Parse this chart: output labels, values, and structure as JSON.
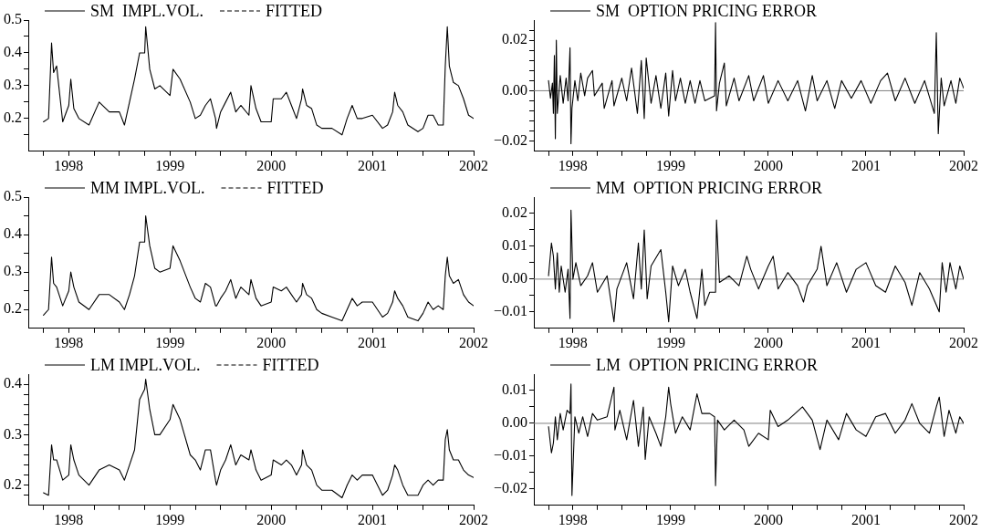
{
  "chart_data": [
    {
      "type": "line",
      "legend": "top left",
      "xlim": [
        1997.6,
        2002
      ],
      "ylim": [
        0.1,
        0.5
      ],
      "xticks": [
        {
          "value": 1997.75,
          "label": null
        },
        1998,
        {
          "value": 1998.25,
          "label": null
        },
        {
          "value": 1998.5,
          "label": null
        },
        {
          "value": 1998.75,
          "label": null
        },
        1999,
        {
          "value": 1999.25,
          "label": null
        },
        {
          "value": 1999.5,
          "label": null
        },
        {
          "value": 1999.75,
          "label": null
        },
        2000,
        {
          "value": 2000.25,
          "label": null
        },
        {
          "value": 2000.5,
          "label": null
        },
        {
          "value": 2000.75,
          "label": null
        },
        2001,
        {
          "value": 2001.25,
          "label": null
        },
        {
          "value": 2001.5,
          "label": null
        },
        {
          "value": 2001.75,
          "label": null
        },
        2002
      ],
      "yticks": [
        {
          "value": 0.15,
          "label": null
        },
        0.2,
        {
          "value": 0.25,
          "label": null
        },
        0.3,
        {
          "value": 0.35,
          "label": null
        },
        0.4,
        {
          "value": 0.45,
          "label": null
        },
        0.5
      ],
      "x": [
        1997.75,
        1997.8,
        1997.83,
        1997.85,
        1997.88,
        1997.94,
        1998,
        1998.02,
        1998.05,
        1998.1,
        1998.2,
        1998.3,
        1998.4,
        1998.5,
        1998.55,
        1998.6,
        1998.65,
        1998.7,
        1998.75,
        1998.76,
        1998.8,
        1998.85,
        1998.9,
        1999,
        1999.03,
        1999.1,
        1999.2,
        1999.25,
        1999.3,
        1999.35,
        1999.4,
        1999.45,
        1999.46,
        1999.5,
        1999.55,
        1999.6,
        1999.65,
        1999.7,
        1999.78,
        1999.8,
        1999.85,
        1999.9,
        2000,
        2000.02,
        2000.1,
        2000.15,
        2000.2,
        2000.25,
        2000.3,
        2000.31,
        2000.35,
        2000.4,
        2000.45,
        2000.5,
        2000.6,
        2000.7,
        2000.75,
        2000.8,
        2000.85,
        2000.9,
        2001,
        2001.1,
        2001.15,
        2001.2,
        2001.22,
        2001.25,
        2001.3,
        2001.35,
        2001.45,
        2001.5,
        2001.55,
        2001.6,
        2001.65,
        2001.7,
        2001.72,
        2001.74,
        2001.76,
        2001.8,
        2001.85,
        2001.9,
        2001.95,
        2002
      ],
      "series": [
        {
          "name": "SM  IMPL.VOL.",
          "color": "#000000",
          "line_style": "solid",
          "values": [
            0.19,
            0.2,
            0.43,
            0.34,
            0.36,
            0.19,
            0.24,
            0.32,
            0.23,
            0.2,
            0.18,
            0.25,
            0.22,
            0.22,
            0.18,
            0.25,
            0.32,
            0.4,
            0.4,
            0.48,
            0.35,
            0.29,
            0.3,
            0.27,
            0.35,
            0.32,
            0.25,
            0.2,
            0.21,
            0.24,
            0.26,
            0.2,
            0.17,
            0.22,
            0.25,
            0.28,
            0.22,
            0.24,
            0.21,
            0.3,
            0.23,
            0.19,
            0.19,
            0.26,
            0.26,
            0.28,
            0.24,
            0.2,
            0.26,
            0.29,
            0.24,
            0.23,
            0.18,
            0.17,
            0.17,
            0.15,
            0.2,
            0.24,
            0.2,
            0.2,
            0.21,
            0.17,
            0.18,
            0.22,
            0.28,
            0.24,
            0.22,
            0.18,
            0.16,
            0.17,
            0.21,
            0.21,
            0.18,
            0.18,
            0.36,
            0.48,
            0.36,
            0.31,
            0.3,
            0.26,
            0.21,
            0.2
          ]
        },
        {
          "name": "FITTED",
          "color": "#000000",
          "line_style": "dashed",
          "values": [
            null,
            null,
            null,
            null,
            null,
            null,
            null,
            null,
            null,
            null,
            null,
            null,
            null,
            null,
            null,
            null,
            null,
            null,
            null,
            null,
            null,
            null,
            null,
            null,
            null,
            null,
            null,
            null,
            null,
            null,
            null,
            null,
            null,
            null,
            null,
            null,
            null,
            null,
            null,
            null,
            null,
            null,
            null,
            null,
            null,
            null,
            null,
            null,
            null,
            null,
            null,
            null,
            null,
            null,
            null,
            null,
            null,
            null,
            null,
            null,
            null,
            null,
            null,
            null,
            null,
            null,
            null,
            null,
            null,
            null,
            null,
            null,
            null,
            null,
            null,
            null,
            null,
            null,
            null,
            null,
            null,
            null
          ]
        }
      ]
    },
    {
      "type": "line",
      "legend": "top left",
      "xlim": [
        1997.6,
        2002
      ],
      "ylim": [
        -0.024,
        0.028
      ],
      "xticks": [
        {
          "value": 1997.75,
          "label": null
        },
        1998,
        {
          "value": 1998.25,
          "label": null
        },
        {
          "value": 1998.5,
          "label": null
        },
        {
          "value": 1998.75,
          "label": null
        },
        1999,
        {
          "value": 1999.25,
          "label": null
        },
        {
          "value": 1999.5,
          "label": null
        },
        {
          "value": 1999.75,
          "label": null
        },
        2000,
        {
          "value": 2000.25,
          "label": null
        },
        {
          "value": 2000.5,
          "label": null
        },
        {
          "value": 2000.75,
          "label": null
        },
        2001,
        {
          "value": 2001.25,
          "label": null
        },
        {
          "value": 2001.5,
          "label": null
        },
        {
          "value": 2001.75,
          "label": null
        },
        2002
      ],
      "yticks": [
        {
          "value": -0.02,
          "label": "−0.02"
        },
        {
          "value": -0.016,
          "label": null
        },
        {
          "value": -0.012,
          "label": null
        },
        {
          "value": -0.008,
          "label": null
        },
        {
          "value": -0.004,
          "label": null
        },
        {
          "value": 0,
          "label": "0.00"
        },
        {
          "value": 0.004,
          "label": null
        },
        {
          "value": 0.008,
          "label": null
        },
        {
          "value": 0.012,
          "label": null
        },
        {
          "value": 0.016,
          "label": null
        },
        {
          "value": 0.02,
          "label": "0.02"
        },
        {
          "value": 0.024,
          "label": null
        }
      ],
      "ref_lines": [
        {
          "axis": "y",
          "value": 0,
          "color": "#808080"
        }
      ],
      "x": [
        1997.75,
        1997.77,
        1997.79,
        1997.8,
        1997.81,
        1997.82,
        1997.83,
        1997.84,
        1997.87,
        1997.9,
        1997.93,
        1997.95,
        1997.97,
        1997.98,
        1997.99,
        1998.02,
        1998.05,
        1998.08,
        1998.12,
        1998.15,
        1998.2,
        1998.22,
        1998.3,
        1998.32,
        1998.4,
        1998.42,
        1998.5,
        1998.55,
        1998.6,
        1998.66,
        1998.7,
        1998.73,
        1998.75,
        1998.8,
        1998.85,
        1998.9,
        1998.95,
        1998.98,
        1999.02,
        1999.05,
        1999.1,
        1999.15,
        1999.2,
        1999.25,
        1999.3,
        1999.35,
        1999.45,
        1999.46,
        1999.47,
        1999.5,
        1999.55,
        1999.57,
        1999.65,
        1999.7,
        1999.8,
        1999.85,
        1999.95,
        2000,
        2000.1,
        2000.2,
        2000.3,
        2000.38,
        2000.45,
        2000.5,
        2000.6,
        2000.68,
        2000.75,
        2000.85,
        2000.95,
        2001.05,
        2001.15,
        2001.22,
        2001.3,
        2001.4,
        2001.5,
        2001.6,
        2001.7,
        2001.72,
        2001.74,
        2001.77,
        2001.8,
        2001.87,
        2001.92,
        2001.96,
        2002
      ],
      "series": [
        {
          "name": "SM  OPTION PRICING ERROR",
          "color": "#000000",
          "line_style": "solid",
          "values": [
            0.004,
            -0.003,
            0.003,
            -0.009,
            0.014,
            -0.019,
            0.02,
            -0.009,
            0.006,
            -0.005,
            0.005,
            -0.004,
            0.017,
            -0.021,
            -0.007,
            0.004,
            -0.004,
            0.007,
            -0.002,
            0.005,
            0.008,
            -0.002,
            0.003,
            -0.007,
            0.004,
            -0.006,
            0.005,
            -0.004,
            0.009,
            -0.009,
            0.012,
            -0.011,
            0.013,
            -0.005,
            0.006,
            -0.007,
            0.007,
            -0.01,
            0.008,
            -0.004,
            0.005,
            -0.005,
            0.004,
            -0.005,
            0.004,
            -0.004,
            -0.002,
            0.027,
            -0.008,
            0.003,
            0.011,
            -0.006,
            0.005,
            -0.004,
            0.006,
            -0.004,
            0.006,
            -0.005,
            0.004,
            -0.004,
            0.004,
            -0.008,
            0.006,
            -0.004,
            0.004,
            -0.007,
            0.004,
            -0.003,
            0.004,
            -0.005,
            0.004,
            0.007,
            -0.004,
            0.005,
            -0.005,
            0.004,
            -0.009,
            0.023,
            -0.017,
            0.005,
            -0.006,
            0.004,
            -0.005,
            0.005,
            0.001
          ]
        }
      ]
    },
    {
      "type": "line",
      "legend": "top left",
      "xlim": [
        1997.6,
        2002
      ],
      "ylim": [
        0.15,
        0.5
      ],
      "xticks": [
        {
          "value": 1997.75,
          "label": null
        },
        1998,
        {
          "value": 1998.25,
          "label": null
        },
        {
          "value": 1998.5,
          "label": null
        },
        {
          "value": 1998.75,
          "label": null
        },
        1999,
        {
          "value": 1999.25,
          "label": null
        },
        {
          "value": 1999.5,
          "label": null
        },
        {
          "value": 1999.75,
          "label": null
        },
        2000,
        {
          "value": 2000.25,
          "label": null
        },
        {
          "value": 2000.5,
          "label": null
        },
        {
          "value": 2000.75,
          "label": null
        },
        2001,
        {
          "value": 2001.25,
          "label": null
        },
        {
          "value": 2001.5,
          "label": null
        },
        {
          "value": 2001.75,
          "label": null
        },
        2002
      ],
      "yticks": [
        0.2,
        {
          "value": 0.25,
          "label": null
        },
        0.3,
        {
          "value": 0.35,
          "label": null
        },
        0.4,
        {
          "value": 0.45,
          "label": null
        },
        0.5
      ],
      "x": [
        1997.75,
        1997.8,
        1997.83,
        1997.85,
        1997.88,
        1997.94,
        1998,
        1998.02,
        1998.05,
        1998.1,
        1998.2,
        1998.3,
        1998.4,
        1998.5,
        1998.55,
        1998.6,
        1998.65,
        1998.7,
        1998.75,
        1998.76,
        1998.8,
        1998.85,
        1998.9,
        1999,
        1999.03,
        1999.1,
        1999.2,
        1999.25,
        1999.3,
        1999.35,
        1999.4,
        1999.45,
        1999.46,
        1999.5,
        1999.55,
        1999.6,
        1999.65,
        1999.7,
        1999.78,
        1999.8,
        1999.85,
        1999.9,
        2000,
        2000.02,
        2000.1,
        2000.15,
        2000.2,
        2000.25,
        2000.3,
        2000.31,
        2000.35,
        2000.4,
        2000.45,
        2000.5,
        2000.6,
        2000.7,
        2000.75,
        2000.8,
        2000.85,
        2000.9,
        2001,
        2001.1,
        2001.15,
        2001.2,
        2001.22,
        2001.25,
        2001.3,
        2001.35,
        2001.45,
        2001.5,
        2001.55,
        2001.6,
        2001.65,
        2001.7,
        2001.72,
        2001.74,
        2001.76,
        2001.8,
        2001.85,
        2001.9,
        2001.95,
        2002
      ],
      "series": [
        {
          "name": "MM IMPL.VOL.",
          "color": "#000000",
          "line_style": "solid",
          "values": [
            0.185,
            0.2,
            0.34,
            0.27,
            0.26,
            0.21,
            0.25,
            0.3,
            0.26,
            0.22,
            0.2,
            0.24,
            0.24,
            0.22,
            0.2,
            0.24,
            0.29,
            0.38,
            0.38,
            0.45,
            0.37,
            0.31,
            0.3,
            0.31,
            0.37,
            0.33,
            0.26,
            0.23,
            0.22,
            0.27,
            0.26,
            0.21,
            0.21,
            0.23,
            0.25,
            0.28,
            0.23,
            0.26,
            0.24,
            0.28,
            0.23,
            0.21,
            0.22,
            0.26,
            0.25,
            0.26,
            0.24,
            0.22,
            0.24,
            0.27,
            0.24,
            0.23,
            0.2,
            0.19,
            0.18,
            0.17,
            0.2,
            0.23,
            0.21,
            0.22,
            0.22,
            0.18,
            0.19,
            0.22,
            0.25,
            0.23,
            0.21,
            0.18,
            0.17,
            0.19,
            0.22,
            0.2,
            0.21,
            0.2,
            0.29,
            0.34,
            0.29,
            0.27,
            0.28,
            0.24,
            0.22,
            0.21
          ]
        },
        {
          "name": "FITTED",
          "color": "#000000",
          "line_style": "dashed",
          "values": [
            null,
            null,
            null,
            null,
            null,
            null,
            null,
            null,
            null,
            null,
            null,
            null,
            null,
            null,
            null,
            null,
            null,
            null,
            null,
            null,
            null,
            null,
            null,
            null,
            null,
            null,
            null,
            null,
            null,
            null,
            null,
            null,
            null,
            null,
            null,
            null,
            null,
            null,
            null,
            null,
            null,
            null,
            null,
            null,
            null,
            null,
            null,
            null,
            null,
            null,
            null,
            null,
            null,
            null,
            null,
            null,
            null,
            null,
            null,
            null,
            null,
            null,
            null,
            null,
            null,
            null,
            null,
            null,
            null,
            null,
            null,
            null,
            null,
            null,
            null,
            null,
            null,
            null,
            null,
            null,
            null,
            null
          ]
        }
      ]
    },
    {
      "type": "line",
      "legend": "top left",
      "xlim": [
        1997.6,
        2002
      ],
      "ylim": [
        -0.015,
        0.025
      ],
      "xticks": [
        {
          "value": 1997.75,
          "label": null
        },
        1998,
        {
          "value": 1998.25,
          "label": null
        },
        {
          "value": 1998.5,
          "label": null
        },
        {
          "value": 1998.75,
          "label": null
        },
        1999,
        {
          "value": 1999.25,
          "label": null
        },
        {
          "value": 1999.5,
          "label": null
        },
        {
          "value": 1999.75,
          "label": null
        },
        2000,
        {
          "value": 2000.25,
          "label": null
        },
        {
          "value": 2000.5,
          "label": null
        },
        {
          "value": 2000.75,
          "label": null
        },
        2001,
        {
          "value": 2001.25,
          "label": null
        },
        {
          "value": 2001.5,
          "label": null
        },
        {
          "value": 2001.75,
          "label": null
        },
        2002
      ],
      "yticks": [
        {
          "value": -0.01,
          "label": "−0.01"
        },
        {
          "value": -0.005,
          "label": null
        },
        {
          "value": 0,
          "label": "0.00"
        },
        {
          "value": 0.005,
          "label": null
        },
        {
          "value": 0.01,
          "label": "0.01"
        },
        {
          "value": 0.015,
          "label": null
        },
        {
          "value": 0.02,
          "label": "0.02"
        }
      ],
      "ref_lines": [
        {
          "axis": "y",
          "value": 0,
          "color": "#808080"
        }
      ],
      "x": [
        1997.75,
        1997.78,
        1997.8,
        1997.82,
        1997.84,
        1997.86,
        1997.88,
        1997.92,
        1997.95,
        1997.97,
        1997.98,
        1998,
        1998.03,
        1998.08,
        1998.15,
        1998.2,
        1998.25,
        1998.35,
        1998.42,
        1998.45,
        1998.55,
        1998.62,
        1998.67,
        1998.7,
        1998.73,
        1998.76,
        1998.8,
        1998.9,
        1998.95,
        1998.98,
        1999.02,
        1999.08,
        1999.15,
        1999.2,
        1999.27,
        1999.32,
        1999.35,
        1999.4,
        1999.46,
        1999.47,
        1999.5,
        1999.6,
        1999.7,
        1999.78,
        1999.82,
        1999.9,
        2000,
        2000.05,
        2000.1,
        2000.2,
        2000.3,
        2000.36,
        2000.4,
        2000.5,
        2000.54,
        2000.6,
        2000.7,
        2000.8,
        2000.9,
        2001,
        2001.1,
        2001.2,
        2001.3,
        2001.4,
        2001.47,
        2001.55,
        2001.65,
        2001.75,
        2001.78,
        2001.82,
        2001.86,
        2001.92,
        2001.96,
        2002
      ],
      "series": [
        {
          "name": "MM  OPTION PRICING ERROR",
          "color": "#000000",
          "line_style": "solid",
          "values": [
            0.001,
            0.011,
            0.007,
            -0.003,
            0.008,
            -0.004,
            0.004,
            -0.004,
            0.003,
            -0.012,
            0.021,
            0,
            0.005,
            -0.002,
            0.001,
            0.005,
            -0.004,
            0.001,
            -0.013,
            -0.003,
            0.005,
            -0.006,
            0.011,
            -0.003,
            0.015,
            -0.006,
            0.004,
            0.009,
            -0.004,
            -0.013,
            0.004,
            -0.002,
            0.003,
            -0.004,
            -0.012,
            0.003,
            -0.008,
            -0.004,
            -0.004,
            0.018,
            -0.001,
            0.001,
            -0.002,
            0.007,
            0.003,
            -0.003,
            0.004,
            0.007,
            -0.003,
            0.002,
            -0.002,
            -0.007,
            -0.002,
            0.003,
            0.01,
            -0.002,
            0.005,
            -0.004,
            0.003,
            0.005,
            -0.002,
            -0.004,
            0.004,
            -0.001,
            -0.008,
            0.002,
            -0.003,
            -0.01,
            0.005,
            -0.004,
            0.005,
            -0.003,
            0.004,
            0
          ]
        }
      ]
    },
    {
      "type": "line",
      "legend": "top left",
      "xlim": [
        1997.6,
        2002
      ],
      "ylim": [
        0.16,
        0.42
      ],
      "xticks": [
        {
          "value": 1997.75,
          "label": null
        },
        1998,
        {
          "value": 1998.25,
          "label": null
        },
        {
          "value": 1998.5,
          "label": null
        },
        {
          "value": 1998.75,
          "label": null
        },
        1999,
        {
          "value": 1999.25,
          "label": null
        },
        {
          "value": 1999.5,
          "label": null
        },
        {
          "value": 1999.75,
          "label": null
        },
        2000,
        {
          "value": 2000.25,
          "label": null
        },
        {
          "value": 2000.5,
          "label": null
        },
        {
          "value": 2000.75,
          "label": null
        },
        2001,
        {
          "value": 2001.25,
          "label": null
        },
        {
          "value": 2001.5,
          "label": null
        },
        {
          "value": 2001.75,
          "label": null
        },
        2002
      ],
      "yticks": [
        {
          "value": 0.18,
          "label": null
        },
        0.2,
        {
          "value": 0.22,
          "label": null
        },
        {
          "value": 0.24,
          "label": null
        },
        {
          "value": 0.26,
          "label": null
        },
        {
          "value": 0.28,
          "label": null
        },
        0.3,
        {
          "value": 0.32,
          "label": null
        },
        {
          "value": 0.34,
          "label": null
        },
        {
          "value": 0.36,
          "label": null
        },
        {
          "value": 0.38,
          "label": null
        },
        0.4
      ],
      "x": [
        1997.75,
        1997.8,
        1997.83,
        1997.85,
        1997.88,
        1997.94,
        1998,
        1998.02,
        1998.05,
        1998.1,
        1998.2,
        1998.3,
        1998.4,
        1998.5,
        1998.55,
        1998.6,
        1998.65,
        1998.7,
        1998.75,
        1998.76,
        1998.8,
        1998.85,
        1998.9,
        1999,
        1999.03,
        1999.1,
        1999.2,
        1999.25,
        1999.3,
        1999.35,
        1999.4,
        1999.45,
        1999.46,
        1999.5,
        1999.55,
        1999.6,
        1999.65,
        1999.7,
        1999.78,
        1999.8,
        1999.85,
        1999.9,
        2000,
        2000.02,
        2000.1,
        2000.15,
        2000.2,
        2000.25,
        2000.3,
        2000.31,
        2000.35,
        2000.4,
        2000.45,
        2000.5,
        2000.6,
        2000.7,
        2000.75,
        2000.8,
        2000.85,
        2000.9,
        2001,
        2001.1,
        2001.15,
        2001.2,
        2001.22,
        2001.25,
        2001.3,
        2001.35,
        2001.45,
        2001.5,
        2001.55,
        2001.6,
        2001.65,
        2001.7,
        2001.72,
        2001.74,
        2001.76,
        2001.8,
        2001.85,
        2001.9,
        2001.95,
        2002
      ],
      "series": [
        {
          "name": "LM IMPL.VOL.",
          "color": "#000000",
          "line_style": "solid",
          "values": [
            0.185,
            0.18,
            0.28,
            0.25,
            0.25,
            0.21,
            0.22,
            0.28,
            0.25,
            0.22,
            0.2,
            0.23,
            0.24,
            0.23,
            0.21,
            0.24,
            0.27,
            0.37,
            0.39,
            0.41,
            0.35,
            0.3,
            0.3,
            0.33,
            0.36,
            0.33,
            0.26,
            0.25,
            0.23,
            0.27,
            0.27,
            0.21,
            0.2,
            0.23,
            0.25,
            0.28,
            0.24,
            0.26,
            0.25,
            0.27,
            0.23,
            0.21,
            0.22,
            0.25,
            0.24,
            0.25,
            0.24,
            0.22,
            0.24,
            0.27,
            0.24,
            0.23,
            0.2,
            0.19,
            0.19,
            0.175,
            0.2,
            0.22,
            0.21,
            0.22,
            0.22,
            0.18,
            0.19,
            0.22,
            0.24,
            0.23,
            0.2,
            0.18,
            0.18,
            0.2,
            0.21,
            0.2,
            0.21,
            0.21,
            0.29,
            0.31,
            0.27,
            0.25,
            0.25,
            0.23,
            0.22,
            0.215
          ]
        },
        {
          "name": "FITTED",
          "color": "#000000",
          "line_style": "dashed",
          "values": [
            null,
            null,
            null,
            null,
            null,
            null,
            null,
            null,
            null,
            null,
            null,
            null,
            null,
            null,
            null,
            null,
            null,
            null,
            null,
            null,
            null,
            null,
            null,
            null,
            null,
            null,
            null,
            null,
            null,
            null,
            null,
            null,
            null,
            null,
            null,
            null,
            null,
            null,
            null,
            null,
            null,
            null,
            null,
            null,
            null,
            null,
            null,
            null,
            null,
            null,
            null,
            null,
            null,
            null,
            null,
            null,
            null,
            null,
            null,
            null,
            null,
            null,
            null,
            null,
            null,
            null,
            null,
            null,
            null,
            null,
            null,
            null,
            null,
            null,
            null,
            null,
            null,
            null,
            null,
            null,
            null,
            null
          ]
        }
      ]
    },
    {
      "type": "line",
      "legend": "top left",
      "xlim": [
        1997.6,
        2002
      ],
      "ylim": [
        -0.025,
        0.015
      ],
      "xticks": [
        {
          "value": 1997.75,
          "label": null
        },
        1998,
        {
          "value": 1998.25,
          "label": null
        },
        {
          "value": 1998.5,
          "label": null
        },
        {
          "value": 1998.75,
          "label": null
        },
        1999,
        {
          "value": 1999.25,
          "label": null
        },
        {
          "value": 1999.5,
          "label": null
        },
        {
          "value": 1999.75,
          "label": null
        },
        2000,
        {
          "value": 2000.25,
          "label": null
        },
        {
          "value": 2000.5,
          "label": null
        },
        {
          "value": 2000.75,
          "label": null
        },
        2001,
        {
          "value": 2001.25,
          "label": null
        },
        {
          "value": 2001.5,
          "label": null
        },
        {
          "value": 2001.75,
          "label": null
        },
        2002
      ],
      "yticks": [
        {
          "value": -0.02,
          "label": "−0.02"
        },
        {
          "value": -0.015,
          "label": null
        },
        {
          "value": -0.01,
          "label": "−0.01"
        },
        {
          "value": -0.005,
          "label": null
        },
        {
          "value": 0,
          "label": "0.00"
        },
        {
          "value": 0.005,
          "label": null
        },
        {
          "value": 0.01,
          "label": "0.01"
        }
      ],
      "ref_lines": [
        {
          "axis": "y",
          "value": 0,
          "color": "#808080"
        }
      ],
      "x": [
        1997.75,
        1997.78,
        1997.8,
        1997.82,
        1997.84,
        1997.87,
        1997.9,
        1997.94,
        1997.97,
        1997.98,
        1997.99,
        1998.02,
        1998.06,
        1998.1,
        1998.15,
        1998.2,
        1998.25,
        1998.35,
        1998.42,
        1998.43,
        1998.48,
        1998.55,
        1998.62,
        1998.67,
        1998.72,
        1998.74,
        1998.78,
        1998.85,
        1998.9,
        1998.95,
        1998.98,
        1999,
        1999.05,
        1999.12,
        1999.2,
        1999.27,
        1999.32,
        1999.4,
        1999.45,
        1999.46,
        1999.48,
        1999.55,
        1999.65,
        1999.75,
        1999.8,
        1999.9,
        2000,
        2000.02,
        2000.1,
        2000.2,
        2000.35,
        2000.45,
        2000.53,
        2000.6,
        2000.72,
        2000.8,
        2000.9,
        2001,
        2001.1,
        2001.2,
        2001.3,
        2001.4,
        2001.47,
        2001.55,
        2001.65,
        2001.72,
        2001.75,
        2001.8,
        2001.85,
        2001.92,
        2001.96,
        2002
      ],
      "series": [
        {
          "name": "LM  OPTION PRICING ERROR",
          "color": "#000000",
          "line_style": "solid",
          "values": [
            -0.001,
            -0.009,
            -0.006,
            0.002,
            -0.005,
            0.003,
            -0.002,
            0.004,
            0.003,
            0.012,
            -0.022,
            0.002,
            -0.003,
            0.002,
            -0.004,
            0.003,
            0.001,
            0.002,
            0.011,
            -0.002,
            0.004,
            -0.005,
            0.007,
            -0.007,
            0.005,
            -0.011,
            0.002,
            -0.003,
            -0.007,
            0.002,
            0.011,
            0.006,
            -0.003,
            0.002,
            -0.002,
            0.009,
            0.003,
            0.003,
            0.002,
            -0.019,
            0.001,
            -0.002,
            0.001,
            -0.002,
            -0.007,
            -0.003,
            -0.005,
            0.004,
            -0.001,
            0.001,
            0.005,
            0.001,
            -0.008,
            0.001,
            -0.005,
            0.003,
            -0.002,
            -0.004,
            0.002,
            0.003,
            -0.003,
            0.001,
            0.006,
            0,
            -0.003,
            0.005,
            0.008,
            -0.004,
            0.004,
            -0.003,
            0.002,
            0
          ]
        }
      ]
    }
  ]
}
